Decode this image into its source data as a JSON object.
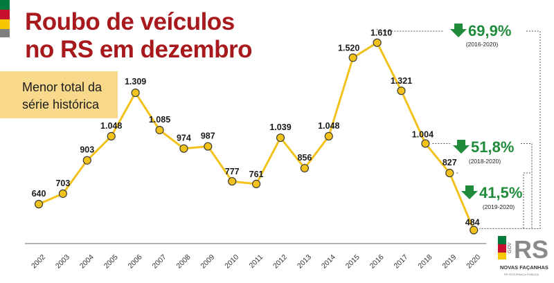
{
  "header": {
    "title_line1": "Roubo de veículos",
    "title_line2": "no RS em dezembro"
  },
  "callout": {
    "line1": "Menor total da",
    "line2": "série histórica"
  },
  "colors": {
    "title": "#a8191d",
    "line": "#f2c21b",
    "callout_bg": "#f8d98b",
    "down_arrow": "#1f8b3b",
    "flag_top": "#007a3d",
    "flag_mid": "#c8102e",
    "flag_bottom": "#f7c600",
    "flag_grey": "#7f7f7f"
  },
  "chart_data": {
    "type": "line",
    "x": [
      "2002",
      "2003",
      "2004",
      "2005",
      "2006",
      "2007",
      "2008",
      "2009",
      "2010",
      "2011",
      "2012",
      "2013",
      "2014",
      "2015",
      "2016",
      "2017",
      "2018",
      "2019",
      "2020"
    ],
    "values": [
      640,
      703,
      903,
      1048,
      1309,
      1085,
      974,
      987,
      777,
      761,
      1039,
      856,
      1048,
      1520,
      1610,
      1321,
      1004,
      827,
      484
    ],
    "value_labels": [
      "640",
      "703",
      "903",
      "1.048",
      "1.309",
      "1.085",
      "974",
      "987",
      "777",
      "761",
      "1.039",
      "856",
      "1.048",
      "1.520",
      "1.610",
      "1.321",
      "1.004",
      "827",
      "484"
    ],
    "title": "Roubo de veículos no RS em dezembro",
    "xlabel": "",
    "ylabel": "",
    "grid": false,
    "annotations": [
      {
        "text": "69,9%",
        "period": "(2016-2020)",
        "from": "2016",
        "to": "2020",
        "direction": "down"
      },
      {
        "text": "51,8%",
        "period": "(2018-2020)",
        "from": "2018",
        "to": "2020",
        "direction": "down"
      },
      {
        "text": "41,5%",
        "period": "(2019-2020)",
        "from": "2019",
        "to": "2020",
        "direction": "down"
      }
    ]
  },
  "logo": {
    "brand_text": "RS",
    "gov_text": "GOV",
    "slogan": "NOVAS FAÇANHAS",
    "sub": "RS SEGURANÇA PÚBLICA"
  }
}
